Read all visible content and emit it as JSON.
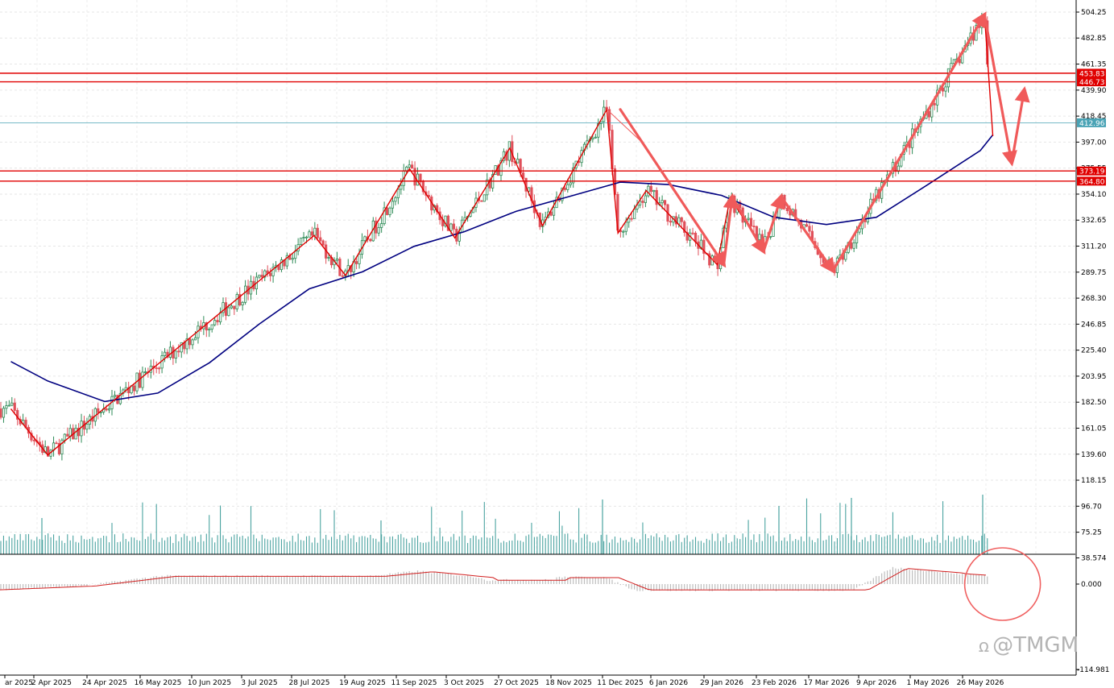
{
  "chart_data": {
    "type": "candlestick",
    "price_axis": {
      "ticks": [
        "504.25",
        "482.85",
        "461.35",
        "439.90",
        "418.45",
        "397.00",
        "375.55",
        "354.10",
        "332.65",
        "311.20",
        "289.75",
        "268.30",
        "246.85",
        "225.40",
        "203.95",
        "182.50",
        "161.05",
        "139.60",
        "118.15",
        "96.70",
        "75.25"
      ],
      "range": [
        60,
        512
      ]
    },
    "indicator_axis": {
      "ticks": [
        "38.574",
        "0.000",
        "-114.981"
      ],
      "range": [
        -114.981,
        48
      ]
    },
    "date_labels": [
      "ar 2025",
      "2 Apr 2025",
      "24 Apr 2025",
      "16 May 2025",
      "10 Jun 2025",
      "3 Jul 2025",
      "28 Jul 2025",
      "19 Aug 2025",
      "11 Sep 2025",
      "3 Oct 2025",
      "27 Oct 2025",
      "18 Nov 2025",
      "11 Dec 2025",
      "6 Jan 2026",
      "29 Jan 2026",
      "23 Feb 2026",
      "17 Mar 2026",
      "9 Apr 2026",
      "1 May 2026",
      "26 May 2026"
    ],
    "horizontal_levels": [
      {
        "value": 453.83,
        "label": "453.83",
        "color": "#e00000"
      },
      {
        "value": 446.73,
        "label": "446.73",
        "color": "#e00000"
      },
      {
        "value": 373.19,
        "label": "373.19",
        "color": "#e00000"
      },
      {
        "value": 364.8,
        "label": "364.80",
        "color": "#e00000"
      }
    ],
    "current_price": {
      "value": 412.96,
      "label": "412.96",
      "color": "#4aa3b5"
    },
    "zigzag_pivots": [
      {
        "date": "Mar 2025",
        "price": 177
      },
      {
        "date": "1 Apr 2025",
        "price": 139
      },
      {
        "date": "30 Jul 2025",
        "price": 320
      },
      {
        "date": "12 Aug 2025",
        "price": 287
      },
      {
        "date": "9 Sep 2025",
        "price": 375
      },
      {
        "date": "29 Sep 2025",
        "price": 318
      },
      {
        "date": "24 Oct 2025",
        "price": 392
      },
      {
        "date": "7 Nov 2025",
        "price": 328
      },
      {
        "date": "5 Dec 2025",
        "price": 424
      },
      {
        "date": "10 Dec 2025",
        "price": 322
      },
      {
        "date": "25 Dec 2025",
        "price": 357
      },
      {
        "date": "27 Jan 2026",
        "price": 296
      },
      {
        "date": "2 Feb 2026",
        "price": 351
      },
      {
        "date": "18 Feb 2026",
        "price": 309
      },
      {
        "date": "26 Feb 2026",
        "price": 352
      },
      {
        "date": "20 Mar 2026",
        "price": 291
      },
      {
        "date": "28 May 2026",
        "price": 502
      },
      {
        "date": "1 Jun 2026",
        "price": 402
      }
    ],
    "moving_average": {
      "color": "#000080",
      "points": [
        {
          "date": "Mar 2025",
          "price": 216
        },
        {
          "date": "1 Apr 2025",
          "price": 200
        },
        {
          "date": "24 Apr 2025",
          "price": 183
        },
        {
          "date": "16 May 2025",
          "price": 190
        },
        {
          "date": "10 Jun 2025",
          "price": 215
        },
        {
          "date": "3 Jul 2025",
          "price": 247
        },
        {
          "date": "28 Jul 2025",
          "price": 276
        },
        {
          "date": "19 Aug 2025",
          "price": 290
        },
        {
          "date": "11 Sep 2025",
          "price": 311
        },
        {
          "date": "3 Oct 2025",
          "price": 323
        },
        {
          "date": "27 Oct 2025",
          "price": 340
        },
        {
          "date": "18 Nov 2025",
          "price": 352
        },
        {
          "date": "11 Dec 2025",
          "price": 364
        },
        {
          "date": "6 Jan 2026",
          "price": 362
        },
        {
          "date": "29 Jan 2026",
          "price": 353
        },
        {
          "date": "23 Feb 2026",
          "price": 335
        },
        {
          "date": "17 Mar 2026",
          "price": 329
        },
        {
          "date": "9 Apr 2026",
          "price": 335
        },
        {
          "date": "1 May 2026",
          "price": 362
        },
        {
          "date": "26 May 2026",
          "price": 390
        },
        {
          "date": "1 Jun 2026",
          "price": 403
        }
      ]
    },
    "projection_arrows": [
      {
        "from": {
          "date": "11 Dec 2025",
          "price": 424
        },
        "to": {
          "date": "30 Jan 2026",
          "price": 296
        }
      },
      {
        "from": {
          "date": "30 Jan 2026",
          "price": 296
        },
        "to": {
          "date": "3 Feb 2026",
          "price": 352
        }
      },
      {
        "from": {
          "date": "3 Feb 2026",
          "price": 352
        },
        "to": {
          "date": "18 Feb 2026",
          "price": 307
        }
      },
      {
        "from": {
          "date": "18 Feb 2026",
          "price": 307
        },
        "to": {
          "date": "26 Feb 2026",
          "price": 352
        }
      },
      {
        "from": {
          "date": "26 Feb 2026",
          "price": 352
        },
        "to": {
          "date": "20 Mar 2026",
          "price": 291
        }
      },
      {
        "from": {
          "date": "20 Mar 2026",
          "price": 291
        },
        "to": {
          "date": "28 May 2026",
          "price": 502
        }
      },
      {
        "from": {
          "date": "28 May 2026",
          "price": 502
        },
        "to": {
          "date": "10 Jun 2026",
          "price": 380
        }
      },
      {
        "from": {
          "date": "10 Jun 2026",
          "price": 380
        },
        "to": {
          "date": "16 Jun 2026",
          "price": 440
        }
      }
    ],
    "colors": {
      "bull": "#2e8b57",
      "bear": "#e0505a",
      "volume": "#4aa3a0",
      "zigzag": "#e00000",
      "arrow": "#f05a5a",
      "histogram": "#bdbdbd",
      "signal": "#d22020"
    },
    "annotation_circle": {
      "date": "1 Jun 2026",
      "indicator_value": 0.0
    }
  },
  "watermark": {
    "text": "@TMGM"
  }
}
